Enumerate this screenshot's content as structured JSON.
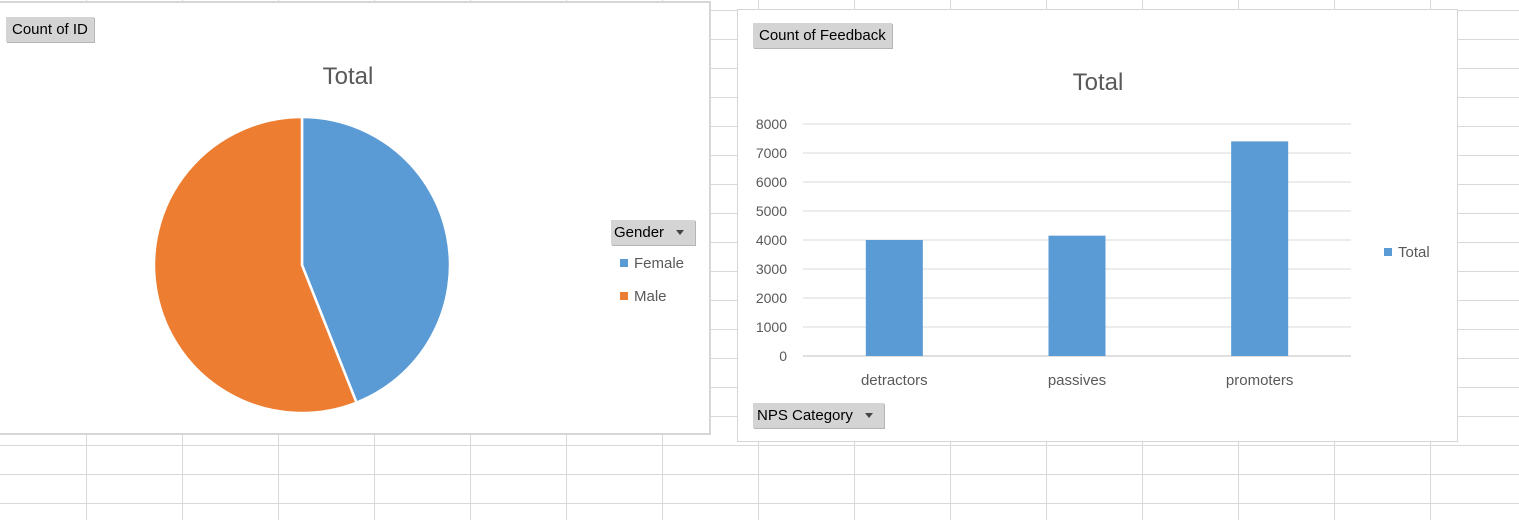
{
  "colors": {
    "female": "#5b9bd5",
    "male": "#ed7d31",
    "bar": "#5b9bd5",
    "gridline": "#d9d9d9",
    "axis_text": "#595959"
  },
  "pie_chart": {
    "field_button": "Count of ID",
    "legend_field": "Gender"
  },
  "bar_chart": {
    "field_button": "Count of Feedback",
    "axis_field": "NPS Category"
  },
  "chart_data": [
    {
      "type": "pie",
      "title": "Total",
      "legend_title": "Gender",
      "legend_position": "right",
      "categories": [
        "Female",
        "Male"
      ],
      "values": [
        44,
        56
      ],
      "unit": "percent of total (estimated)"
    },
    {
      "type": "bar",
      "title": "Total",
      "categories": [
        "detractors",
        "passives",
        "promoters"
      ],
      "series": [
        {
          "name": "Total",
          "values": [
            4000,
            4150,
            7400
          ]
        }
      ],
      "yticks": [
        "0",
        "1000",
        "2000",
        "3000",
        "4000",
        "5000",
        "6000",
        "7000",
        "8000"
      ],
      "ylim": [
        0,
        8000
      ],
      "grid": true,
      "legend_position": "right",
      "xlabel": "",
      "ylabel": ""
    }
  ]
}
